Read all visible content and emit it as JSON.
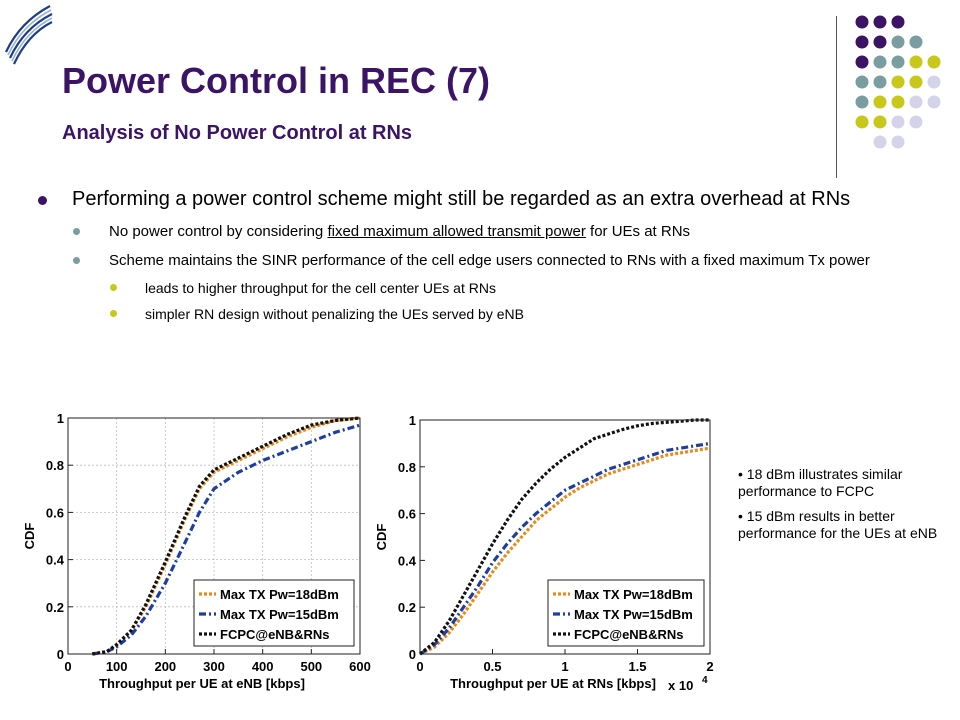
{
  "slide": {
    "title": "Power Control in REC (7)",
    "subtitle": "Analysis of No Power Control at RNs",
    "bullets": {
      "main": "Performing a power control scheme might still be regarded as an extra overhead at RNs",
      "sub1_before": "No power control by considering ",
      "sub1_underlined": "fixed maximum allowed transmit power",
      "sub1_after": " for UEs at RNs",
      "sub2": "Scheme maintains the SINR performance of the cell edge users connected to RNs with a fixed maximum Tx power",
      "subsub1": "leads to higher throughput for the cell center UEs at RNs",
      "subsub2": "simpler RN design without penalizing the UEs served by eNB"
    },
    "notes": [
      "• 18 dBm illustrates similar performance to FCPC",
      "• 15 dBm results in better performance for the UEs at eNB"
    ],
    "colors": {
      "title": "#3b1466",
      "dot_purple": "#3b1466",
      "dot_teal": "#7a9e9f",
      "dot_yellow": "#c7c81a",
      "dot_lavender": "#d4d3ea"
    }
  },
  "chart_data": [
    {
      "type": "line",
      "xlabel": "Throughput per UE at eNB [kbps]",
      "ylabel": "CDF",
      "xlim": [
        0,
        600
      ],
      "ylim": [
        0,
        1
      ],
      "xticks": [
        "0",
        "100",
        "200",
        "300",
        "400",
        "500",
        "600"
      ],
      "yticks": [
        "0",
        "0.2",
        "0.4",
        "0.6",
        "0.8",
        "1"
      ],
      "grid": true,
      "legend": "bottom-right",
      "series": [
        {
          "name": "Max TX Pw=18dBm",
          "color": "#e8891a",
          "dash": "dot",
          "x": [
            50,
            80,
            100,
            130,
            160,
            200,
            240,
            270,
            300,
            350,
            400,
            450,
            500,
            550,
            600
          ],
          "y": [
            0,
            0.01,
            0.04,
            0.1,
            0.2,
            0.38,
            0.57,
            0.7,
            0.77,
            0.82,
            0.87,
            0.92,
            0.96,
            0.99,
            1.0
          ]
        },
        {
          "name": "Max TX Pw=15dBm",
          "color": "#1f3fa0",
          "dash": "dashdot",
          "x": [
            50,
            80,
            100,
            130,
            160,
            200,
            240,
            270,
            300,
            350,
            400,
            450,
            500,
            550,
            600
          ],
          "y": [
            0,
            0.01,
            0.03,
            0.08,
            0.16,
            0.3,
            0.47,
            0.6,
            0.7,
            0.77,
            0.82,
            0.86,
            0.9,
            0.94,
            0.97
          ]
        },
        {
          "name": "FCPC@eNB&RNs",
          "color": "#111111",
          "dash": "dot",
          "x": [
            50,
            80,
            100,
            130,
            160,
            200,
            240,
            270,
            300,
            350,
            400,
            450,
            500,
            550,
            600
          ],
          "y": [
            0,
            0.01,
            0.04,
            0.1,
            0.21,
            0.39,
            0.58,
            0.71,
            0.78,
            0.83,
            0.88,
            0.93,
            0.97,
            0.99,
            1.0
          ]
        }
      ]
    },
    {
      "type": "line",
      "xlabel": "Throughput per UE at RNs [kbps]",
      "ylabel": "CDF",
      "xlim": [
        0,
        2
      ],
      "ylim": [
        0,
        1
      ],
      "xticks": [
        "0",
        "0.5",
        "1",
        "1.5",
        "2"
      ],
      "yticks": [
        "0",
        "0.2",
        "0.4",
        "0.6",
        "0.8",
        "1"
      ],
      "x_multiplier": "x 10",
      "x_multiplier_exp": "4",
      "grid": false,
      "legend": "bottom-right",
      "series": [
        {
          "name": "Max TX Pw=18dBm",
          "color": "#e8891a",
          "dash": "dot",
          "x": [
            0,
            0.1,
            0.2,
            0.3,
            0.4,
            0.5,
            0.6,
            0.7,
            0.8,
            0.9,
            1.0,
            1.1,
            1.2,
            1.3,
            1.4,
            1.5,
            1.6,
            1.7,
            1.8,
            1.9,
            2.0
          ],
          "y": [
            0,
            0.03,
            0.09,
            0.17,
            0.26,
            0.35,
            0.43,
            0.5,
            0.57,
            0.62,
            0.67,
            0.71,
            0.74,
            0.77,
            0.79,
            0.81,
            0.83,
            0.85,
            0.86,
            0.87,
            0.88
          ]
        },
        {
          "name": "Max TX Pw=15dBm",
          "color": "#1f3fa0",
          "dash": "dashdot",
          "x": [
            0,
            0.1,
            0.2,
            0.3,
            0.4,
            0.5,
            0.6,
            0.7,
            0.8,
            0.9,
            1.0,
            1.1,
            1.2,
            1.3,
            1.4,
            1.5,
            1.6,
            1.7,
            1.8,
            1.9,
            2.0
          ],
          "y": [
            0,
            0.04,
            0.11,
            0.2,
            0.29,
            0.39,
            0.47,
            0.54,
            0.6,
            0.65,
            0.7,
            0.73,
            0.76,
            0.79,
            0.81,
            0.83,
            0.85,
            0.87,
            0.88,
            0.89,
            0.9
          ]
        },
        {
          "name": "FCPC@eNB&RNs",
          "color": "#111111",
          "dash": "dot",
          "x": [
            0,
            0.1,
            0.2,
            0.3,
            0.4,
            0.5,
            0.6,
            0.7,
            0.8,
            0.9,
            1.0,
            1.1,
            1.2,
            1.3,
            1.4,
            1.5,
            1.6,
            1.7,
            1.8,
            1.9,
            2.0
          ],
          "y": [
            0,
            0.05,
            0.14,
            0.25,
            0.36,
            0.47,
            0.57,
            0.66,
            0.73,
            0.79,
            0.84,
            0.88,
            0.92,
            0.94,
            0.96,
            0.975,
            0.985,
            0.99,
            0.995,
            1.0,
            1.0
          ]
        }
      ]
    }
  ]
}
